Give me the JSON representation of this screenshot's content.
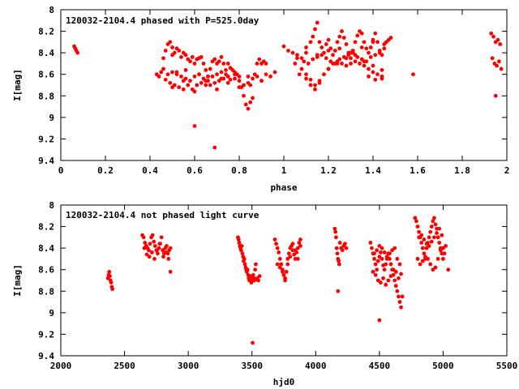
{
  "chart_data": [
    {
      "type": "scatter",
      "title": "120032-2104.4 phased with P=525.0day",
      "xlabel": "phase",
      "ylabel": "I[mag]",
      "xlim": [
        0,
        2
      ],
      "ylim": [
        9.4,
        8
      ],
      "y_inverted": true,
      "x_ticks": [
        "0",
        "0.2",
        "0.4",
        "0.6",
        "0.8",
        "1",
        "1.2",
        "1.4",
        "1.6",
        "1.8",
        "2"
      ],
      "y_ticks": [
        "8",
        "8.2",
        "8.4",
        "8.6",
        "8.8",
        "9",
        "9.2",
        "9.4"
      ],
      "grid": false,
      "color": "#ff0000",
      "series": [
        {
          "x": [
            0.06,
            0.065,
            0.07,
            0.075,
            0.43,
            0.44,
            0.45,
            0.46,
            0.47,
            0.48,
            0.49,
            0.5,
            0.5,
            0.51,
            0.52,
            0.53,
            0.54,
            0.55,
            0.56,
            0.57,
            0.58,
            0.59,
            0.6,
            0.61,
            0.62,
            0.63,
            0.64,
            0.65,
            0.66,
            0.67,
            0.68,
            0.69,
            0.7,
            0.71,
            0.72,
            0.73,
            0.74,
            0.75,
            0.76,
            0.77,
            0.78,
            0.79,
            0.8,
            0.81,
            0.82,
            0.83,
            0.84,
            0.85,
            0.86,
            0.87,
            0.88,
            0.89,
            0.9,
            0.91,
            0.92,
            0.47,
            0.49,
            0.51,
            0.53,
            0.55,
            0.57,
            0.59,
            0.61,
            0.63,
            0.65,
            0.67,
            0.69,
            0.71,
            0.73,
            0.75,
            0.46,
            0.48,
            0.5,
            0.52,
            0.54,
            0.56,
            0.58,
            0.6,
            0.62,
            0.64,
            0.66,
            0.68,
            0.7,
            0.72,
            0.74,
            0.76,
            0.78,
            0.8,
            0.82,
            0.84,
            0.86,
            0.88,
            0.9,
            0.92,
            0.94,
            0.96,
            0.5,
            0.55,
            0.6,
            0.65,
            0.7,
            0.75,
            0.8,
            0.85,
            0.9,
            0.52,
            0.56,
            0.62,
            0.66,
            0.72,
            0.78,
            0.84,
            0.6,
            0.69,
            1.0,
            1.02,
            1.04,
            1.06,
            1.08,
            1.1,
            1.12,
            1.13,
            1.14,
            1.15,
            1.16,
            1.17,
            1.18,
            1.19,
            1.2,
            1.21,
            1.22,
            1.23,
            1.24,
            1.25,
            1.26,
            1.27,
            1.28,
            1.29,
            1.3,
            1.31,
            1.32,
            1.33,
            1.34,
            1.35,
            1.36,
            1.37,
            1.38,
            1.39,
            1.4,
            1.41,
            1.42,
            1.43,
            1.44,
            1.45,
            1.46,
            1.47,
            1.48,
            1.05,
            1.08,
            1.1,
            1.12,
            1.14,
            1.16,
            1.18,
            1.2,
            1.22,
            1.24,
            1.26,
            1.28,
            1.3,
            1.32,
            1.34,
            1.36,
            1.38,
            1.4,
            1.42,
            1.44,
            1.06,
            1.09,
            1.11,
            1.13,
            1.15,
            1.17,
            1.19,
            1.21,
            1.23,
            1.25,
            1.27,
            1.29,
            1.31,
            1.33,
            1.35,
            1.37,
            1.39,
            1.41,
            1.43,
            1.07,
            1.1,
            1.12,
            1.14,
            1.16,
            1.2,
            1.24,
            1.28,
            1.32,
            1.36,
            1.4,
            1.44,
            1.1,
            1.15,
            1.2,
            1.25,
            1.3,
            1.35,
            1.4,
            1.45,
            1.38,
            1.41,
            1.44,
            1.58,
            1.93,
            1.94,
            1.95,
            1.96,
            1.97,
            1.935,
            1.945,
            1.955,
            1.965,
            1.975,
            1.95
          ],
          "y": [
            8.34,
            8.36,
            8.38,
            8.4,
            8.6,
            8.62,
            8.58,
            8.45,
            8.38,
            8.32,
            8.3,
            8.35,
            8.42,
            8.4,
            8.36,
            8.38,
            8.44,
            8.4,
            8.42,
            8.46,
            8.48,
            8.44,
            8.5,
            8.46,
            8.45,
            8.44,
            8.5,
            8.56,
            8.62,
            8.55,
            8.48,
            8.46,
            8.5,
            8.48,
            8.44,
            8.5,
            8.56,
            8.5,
            8.54,
            8.56,
            8.58,
            8.6,
            8.62,
            8.72,
            8.8,
            8.88,
            8.92,
            8.86,
            8.82,
            8.6,
            8.5,
            8.46,
            8.5,
            8.48,
            8.5,
            8.65,
            8.68,
            8.7,
            8.72,
            8.66,
            8.7,
            8.74,
            8.7,
            8.68,
            8.66,
            8.7,
            8.68,
            8.66,
            8.64,
            8.62,
            8.55,
            8.6,
            8.58,
            8.6,
            8.62,
            8.64,
            8.66,
            8.62,
            8.6,
            8.64,
            8.66,
            8.62,
            8.6,
            8.64,
            8.6,
            8.65,
            8.64,
            8.66,
            8.7,
            8.68,
            8.64,
            8.62,
            8.66,
            8.6,
            8.62,
            8.58,
            8.72,
            8.74,
            8.76,
            8.7,
            8.74,
            8.68,
            8.72,
            8.7,
            8.66,
            8.58,
            8.56,
            8.6,
            8.62,
            8.58,
            8.6,
            8.62,
            9.08,
            9.28,
            8.34,
            8.38,
            8.4,
            8.42,
            8.45,
            8.35,
            8.3,
            8.25,
            8.18,
            8.12,
            8.3,
            8.35,
            8.4,
            8.32,
            8.28,
            8.36,
            8.42,
            8.38,
            8.3,
            8.25,
            8.2,
            8.26,
            8.32,
            8.4,
            8.45,
            8.38,
            8.3,
            8.24,
            8.2,
            8.22,
            8.3,
            8.36,
            8.4,
            8.35,
            8.28,
            8.22,
            8.3,
            8.38,
            8.42,
            8.36,
            8.3,
            8.28,
            8.26,
            8.5,
            8.55,
            8.6,
            8.65,
            8.7,
            8.66,
            8.6,
            8.55,
            8.5,
            8.48,
            8.5,
            8.52,
            8.5,
            8.48,
            8.5,
            8.52,
            8.55,
            8.58,
            8.6,
            8.62,
            8.45,
            8.48,
            8.5,
            8.46,
            8.44,
            8.42,
            8.45,
            8.48,
            8.5,
            8.46,
            8.44,
            8.42,
            8.4,
            8.44,
            8.46,
            8.48,
            8.44,
            8.42,
            8.4,
            8.6,
            8.64,
            8.7,
            8.74,
            8.68,
            8.55,
            8.5,
            8.45,
            8.42,
            8.48,
            8.52,
            8.56,
            8.4,
            8.42,
            8.38,
            8.36,
            8.4,
            8.35,
            8.3,
            8.32,
            8.62,
            8.65,
            8.64,
            8.6,
            8.22,
            8.25,
            8.3,
            8.28,
            8.32,
            8.45,
            8.5,
            8.52,
            8.48,
            8.55,
            8.8
          ]
        }
      ]
    },
    {
      "type": "scatter",
      "title": "120032-2104.4 not phased light curve",
      "xlabel": "hjd0",
      "ylabel": "I[mag]",
      "xlim": [
        2000,
        5500
      ],
      "ylim": [
        9.4,
        8
      ],
      "y_inverted": true,
      "x_ticks": [
        "2000",
        "2500",
        "3000",
        "3500",
        "4000",
        "4500",
        "5000",
        "5500"
      ],
      "y_ticks": [
        "8",
        "8.2",
        "8.4",
        "8.6",
        "8.8",
        "9",
        "9.2",
        "9.4"
      ],
      "grid": false,
      "color": "#ff0000",
      "series": [
        {
          "x": [
            2370,
            2375,
            2380,
            2385,
            2390,
            2395,
            2400,
            2405,
            2640,
            2650,
            2660,
            2670,
            2680,
            2690,
            2700,
            2710,
            2720,
            2730,
            2740,
            2750,
            2760,
            2770,
            2780,
            2790,
            2800,
            2810,
            2820,
            2830,
            2840,
            2850,
            2860,
            2655,
            2675,
            2695,
            2715,
            2735,
            2755,
            2775,
            2805,
            2825,
            2845,
            2860,
            3390,
            3395,
            3400,
            3405,
            3410,
            3415,
            3420,
            3425,
            3430,
            3435,
            3440,
            3445,
            3450,
            3455,
            3460,
            3465,
            3470,
            3475,
            3480,
            3485,
            3490,
            3495,
            3500,
            3505,
            3510,
            3515,
            3520,
            3525,
            3530,
            3540,
            3550,
            3560,
            3505,
            3680,
            3690,
            3700,
            3710,
            3720,
            3730,
            3740,
            3750,
            3760,
            3770,
            3780,
            3790,
            3800,
            3810,
            3820,
            3830,
            3840,
            3850,
            3860,
            3870,
            3880,
            3700,
            3720,
            3740,
            3760,
            3780,
            3800,
            3820,
            3840,
            3860,
            3880,
            4150,
            4155,
            4160,
            4165,
            4170,
            4175,
            4180,
            4185,
            4190,
            4200,
            4210,
            4220,
            4230,
            4240,
            4175,
            4430,
            4440,
            4450,
            4460,
            4470,
            4480,
            4490,
            4500,
            4510,
            4520,
            4530,
            4540,
            4550,
            4560,
            4570,
            4580,
            4590,
            4600,
            4610,
            4620,
            4630,
            4640,
            4650,
            4660,
            4670,
            4680,
            4450,
            4470,
            4490,
            4510,
            4530,
            4550,
            4570,
            4590,
            4610,
            4630,
            4650,
            4670,
            4460,
            4480,
            4500,
            4520,
            4540,
            4560,
            4580,
            4600,
            4620,
            4640,
            4660,
            4500,
            4780,
            4790,
            4800,
            4810,
            4820,
            4830,
            4840,
            4850,
            4860,
            4870,
            4880,
            4890,
            4900,
            4910,
            4920,
            4930,
            4940,
            4950,
            4960,
            4970,
            4980,
            4990,
            5000,
            5010,
            5020,
            5040,
            4800,
            4820,
            4840,
            4860,
            4880,
            4900,
            4920,
            4940,
            4960,
            4980,
            5000,
            4810,
            4830,
            4850,
            4870,
            4890,
            4910,
            4930,
            4950,
            4970,
            4990
          ],
          "y": [
            8.68,
            8.65,
            8.62,
            8.66,
            8.7,
            8.72,
            8.76,
            8.78,
            8.28,
            8.3,
            8.35,
            8.38,
            8.4,
            8.42,
            8.36,
            8.3,
            8.28,
            8.34,
            8.38,
            8.42,
            8.45,
            8.4,
            8.36,
            8.3,
            8.42,
            8.45,
            8.4,
            8.38,
            8.45,
            8.42,
            8.4,
            8.4,
            8.46,
            8.48,
            8.44,
            8.5,
            8.42,
            8.36,
            8.48,
            8.44,
            8.5,
            8.62,
            8.3,
            8.32,
            8.35,
            8.38,
            8.4,
            8.42,
            8.38,
            8.45,
            8.48,
            8.52,
            8.5,
            8.55,
            8.58,
            8.6,
            8.62,
            8.6,
            8.65,
            8.68,
            8.7,
            8.66,
            8.7,
            8.72,
            8.68,
            8.7,
            8.65,
            8.68,
            8.7,
            8.6,
            8.55,
            8.68,
            8.7,
            8.66,
            9.28,
            8.32,
            8.36,
            8.4,
            8.44,
            8.5,
            8.55,
            8.6,
            8.65,
            8.68,
            8.62,
            8.5,
            8.45,
            8.4,
            8.38,
            8.42,
            8.46,
            8.5,
            8.44,
            8.4,
            8.35,
            8.32,
            8.55,
            8.58,
            8.62,
            8.7,
            8.55,
            8.48,
            8.36,
            8.42,
            8.5,
            8.38,
            8.22,
            8.25,
            8.3,
            8.4,
            8.45,
            8.5,
            8.52,
            8.55,
            8.35,
            8.4,
            8.42,
            8.38,
            8.36,
            8.4,
            8.8,
            8.35,
            8.4,
            8.45,
            8.5,
            8.55,
            8.6,
            8.52,
            8.48,
            8.44,
            8.5,
            8.56,
            8.6,
            8.55,
            8.5,
            8.45,
            8.5,
            8.55,
            8.6,
            8.65,
            8.7,
            8.75,
            8.8,
            8.85,
            8.9,
            8.95,
            8.85,
            8.62,
            8.65,
            8.7,
            8.72,
            8.68,
            8.74,
            8.7,
            8.66,
            8.6,
            8.62,
            8.68,
            8.64,
            8.45,
            8.42,
            8.38,
            8.4,
            8.44,
            8.48,
            8.45,
            8.42,
            8.4,
            8.5,
            8.55,
            9.07,
            8.12,
            8.15,
            8.2,
            8.25,
            8.3,
            8.35,
            8.4,
            8.45,
            8.5,
            8.4,
            8.35,
            8.3,
            8.25,
            8.2,
            8.15,
            8.12,
            8.18,
            8.22,
            8.3,
            8.35,
            8.4,
            8.45,
            8.5,
            8.45,
            8.38,
            8.6,
            8.5,
            8.55,
            8.52,
            8.48,
            8.5,
            8.55,
            8.6,
            8.58,
            8.5,
            8.42,
            8.4,
            8.3,
            8.28,
            8.32,
            8.36,
            8.38,
            8.34,
            8.3,
            8.26,
            8.22,
            8.28
          ]
        }
      ]
    }
  ]
}
